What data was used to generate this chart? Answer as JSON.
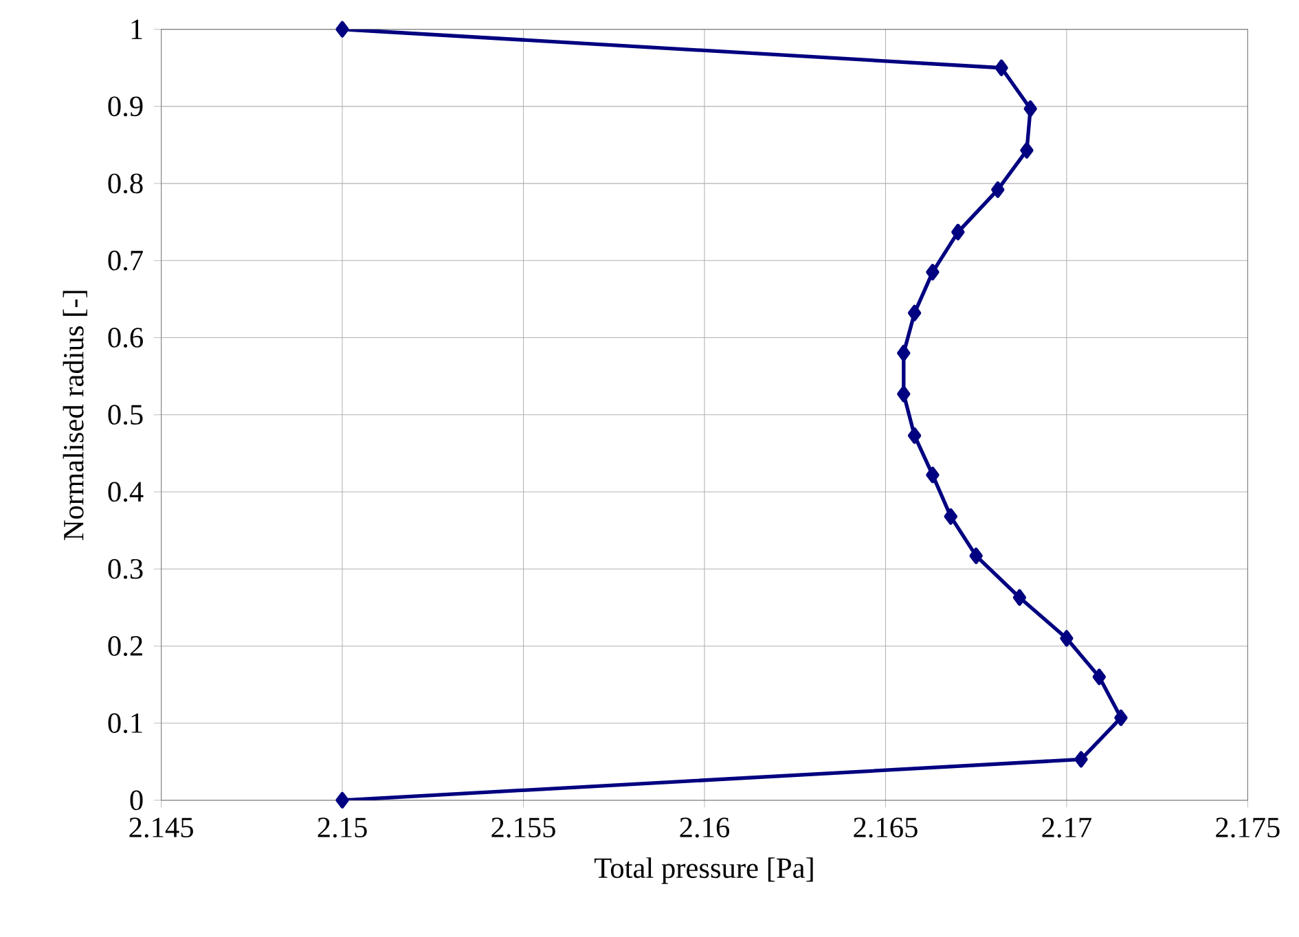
{
  "chart_data": {
    "type": "line",
    "xlabel": "Total pressure [Pa]",
    "ylabel": "Normalised radius [-]",
    "xlim": [
      2.145,
      2.175
    ],
    "xticks": [
      2.145,
      2.15,
      2.155,
      2.16,
      2.165,
      2.17,
      2.175
    ],
    "ylim": [
      0,
      1
    ],
    "yticks": [
      0,
      0.1,
      0.2,
      0.3,
      0.4,
      0.5,
      0.6,
      0.7,
      0.8,
      0.9,
      1
    ],
    "grid": true,
    "marker": "diamond",
    "line_style": "solid",
    "series": [
      {
        "color": "#000080",
        "x": [
          2.15,
          2.1704,
          2.1715,
          2.1709,
          2.17,
          2.1687,
          2.1675,
          2.1668,
          2.1663,
          2.1658,
          2.1655,
          2.1655,
          2.1658,
          2.1663,
          2.167,
          2.1681,
          2.1689,
          2.169,
          2.1682,
          2.15
        ],
        "values": [
          0,
          0.053,
          0.107,
          0.16,
          0.21,
          0.263,
          0.317,
          0.368,
          0.422,
          0.473,
          0.527,
          0.58,
          0.632,
          0.685,
          0.737,
          0.792,
          0.843,
          0.897,
          0.95,
          1
        ]
      }
    ]
  }
}
